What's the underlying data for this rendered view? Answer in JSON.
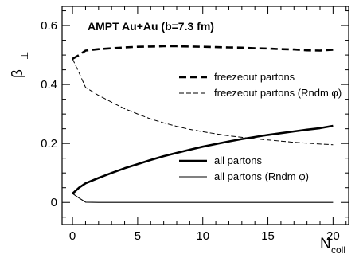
{
  "chart_data": {
    "type": "line",
    "title": "",
    "annotation": "AMPT Au+Au (b=7.3 fm)",
    "xlabel_main": "N",
    "xlabel_sub": "coll",
    "ylabel_main": "β",
    "ylabel_sub": "⊥",
    "xlim": [
      -0.8,
      21.2
    ],
    "ylim": [
      -0.075,
      0.665
    ],
    "xticks": [
      0,
      5,
      10,
      15,
      20
    ],
    "yticks": [
      0,
      0.2,
      0.4,
      0.6
    ],
    "ytick_labels": [
      "0",
      "0.2",
      "0.4",
      "0.6"
    ],
    "legend_placement": "right",
    "series": [
      {
        "name": "freezeout partons",
        "style": "thick-dashed",
        "x": [
          0,
          0.5,
          1,
          2,
          3,
          4,
          5,
          6,
          7,
          8,
          9,
          10,
          11,
          12,
          13,
          14,
          15,
          16,
          17,
          18,
          19,
          20
        ],
        "y": [
          0.487,
          0.5,
          0.515,
          0.52,
          0.523,
          0.526,
          0.528,
          0.529,
          0.53,
          0.53,
          0.529,
          0.528,
          0.527,
          0.526,
          0.525,
          0.523,
          0.522,
          0.52,
          0.519,
          0.516,
          0.515,
          0.518
        ]
      },
      {
        "name": "freezeout partons (Rndm φ)",
        "style": "thin-dashed",
        "x": [
          0,
          0.5,
          1,
          2,
          3,
          4,
          5,
          6,
          7,
          8,
          9,
          10,
          11,
          12,
          13,
          14,
          15,
          16,
          17,
          18,
          19,
          20
        ],
        "y": [
          0.487,
          0.44,
          0.39,
          0.363,
          0.34,
          0.318,
          0.3,
          0.283,
          0.27,
          0.258,
          0.248,
          0.24,
          0.233,
          0.226,
          0.221,
          0.216,
          0.212,
          0.208,
          0.204,
          0.201,
          0.198,
          0.196
        ]
      },
      {
        "name": "all partons",
        "style": "thick-solid",
        "x": [
          0,
          0.5,
          1,
          2,
          3,
          4,
          5,
          6,
          7,
          8,
          9,
          10,
          11,
          12,
          13,
          14,
          15,
          16,
          17,
          18,
          19,
          20
        ],
        "y": [
          0.03,
          0.05,
          0.065,
          0.083,
          0.1,
          0.116,
          0.13,
          0.144,
          0.157,
          0.168,
          0.179,
          0.189,
          0.198,
          0.207,
          0.215,
          0.222,
          0.229,
          0.235,
          0.241,
          0.247,
          0.252,
          0.26
        ]
      },
      {
        "name": "all partons (Rndm φ)",
        "style": "thin-solid",
        "x": [
          0,
          0.5,
          1,
          2,
          5,
          10,
          15,
          20
        ],
        "y": [
          0.03,
          0.015,
          0.001,
          0.0,
          0.0,
          0.0,
          0.0,
          0.0
        ]
      }
    ]
  }
}
